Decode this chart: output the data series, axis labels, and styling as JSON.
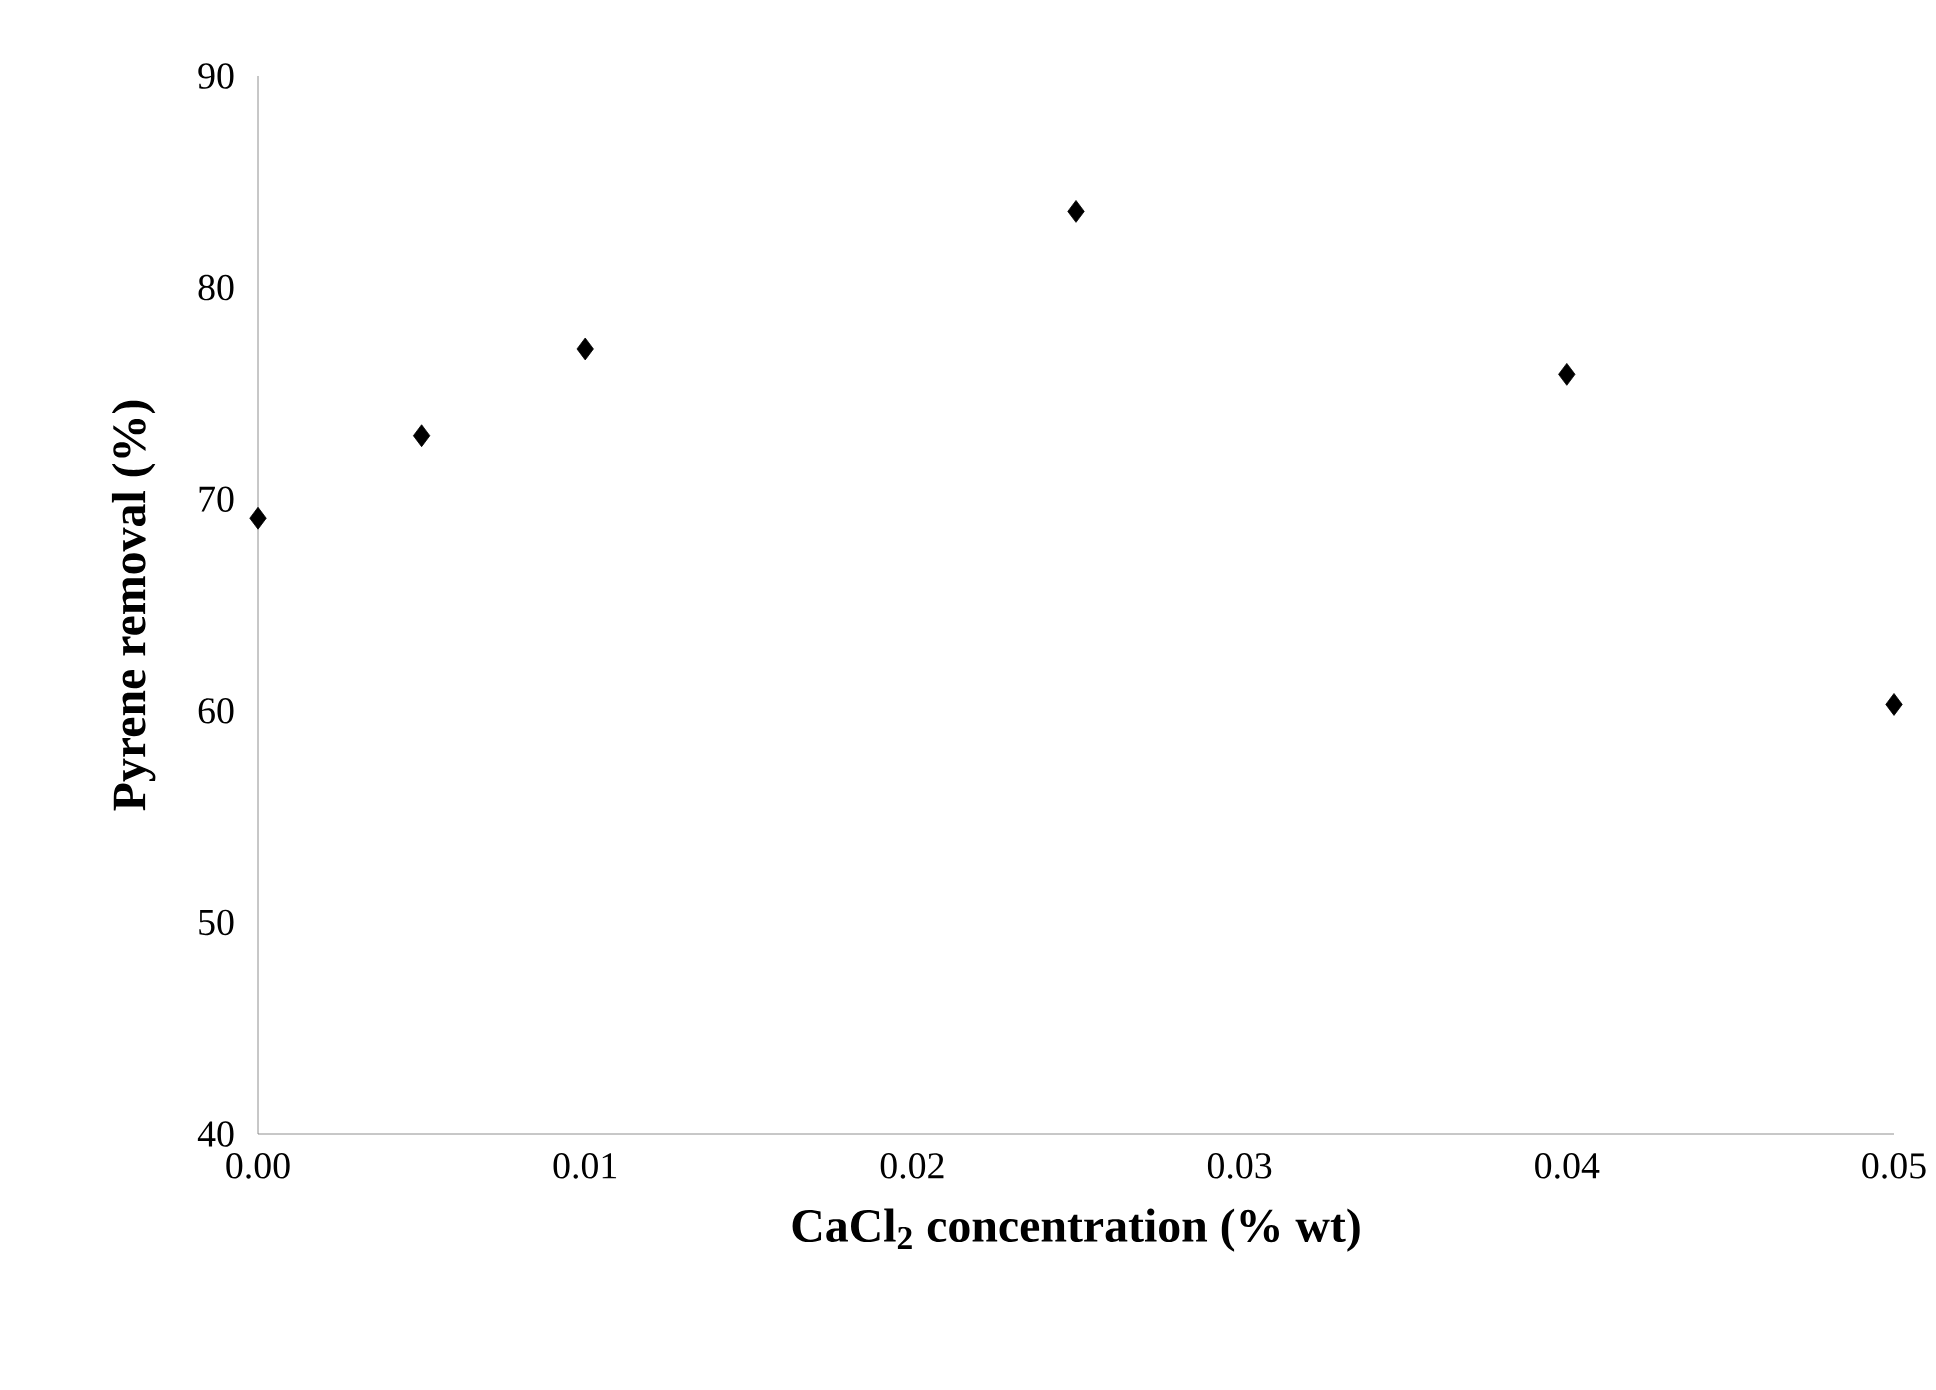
{
  "chart_data": {
    "type": "scatter",
    "xlabel": "CaCl$_{2}$ concentration (% wt)",
    "ylabel": "Pyrene removal (%)",
    "x": [
      0,
      0.005,
      0.01,
      0.025,
      0.04,
      0.05
    ],
    "series": [
      {
        "color": "#000000",
        "values": [
          69.1,
          73.0,
          77.1,
          83.6,
          75.9,
          60.3
        ]
      }
    ],
    "marker": "diamond",
    "xlim": [
      0,
      0.05
    ],
    "xticks": [
      {
        "value": 0,
        "label": "0.00"
      },
      {
        "value": 0.01,
        "label": "0.01"
      },
      {
        "value": 0.02,
        "label": "0.02"
      },
      {
        "value": 0.03,
        "label": "0.03"
      },
      {
        "value": 0.04,
        "label": "0.04"
      },
      {
        "value": 0.05,
        "label": "0.05"
      }
    ],
    "ylim": [
      40,
      90
    ],
    "yticks": [
      40,
      50,
      60,
      70,
      80,
      90
    ]
  }
}
